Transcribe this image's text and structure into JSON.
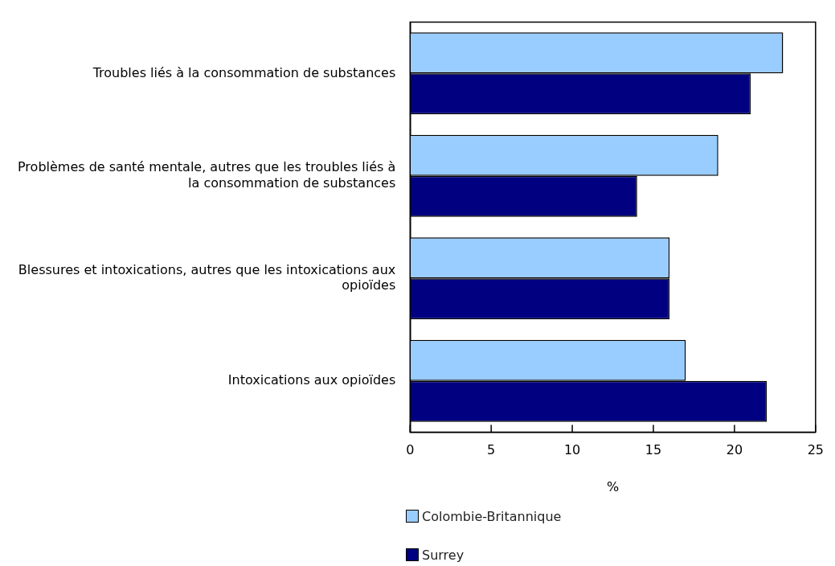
{
  "chart_data": {
    "type": "bar",
    "orientation": "horizontal",
    "xlabel": "%",
    "categories": [
      "Troubles liés à la consommation de substances",
      "Problèmes de santé mentale, autres que les troubles liés à la consommation de substances",
      "Blessures et intoxications, autres que les intoxications aux opioïdes",
      "Intoxications aux opioïdes"
    ],
    "series": [
      {
        "name": "Colombie-Britannique",
        "color": "#99ccff",
        "values": [
          23,
          19,
          16,
          17
        ]
      },
      {
        "name": "Surrey",
        "color": "#000080",
        "values": [
          21,
          14,
          16,
          22
        ]
      }
    ],
    "xlim": [
      0,
      25
    ],
    "xticks": [
      0,
      5,
      10,
      15,
      20,
      25
    ],
    "grid": false,
    "legend": "bottom"
  }
}
